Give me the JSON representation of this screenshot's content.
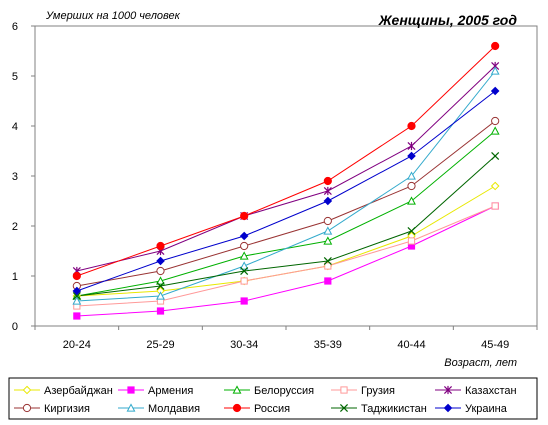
{
  "chart_data": {
    "type": "line",
    "title": "Женщины, 2005 год",
    "ylabel": "Умерших на 1000 человек",
    "xlabel": "Возраст, лет",
    "categories": [
      "20-24",
      "25-29",
      "30-34",
      "35-39",
      "40-44",
      "45-49"
    ],
    "ylim": [
      0,
      6
    ],
    "yticks": [
      "0",
      "1",
      "2",
      "3",
      "4",
      "5",
      "6"
    ],
    "grid": false,
    "legend_position": "bottom",
    "series": [
      {
        "name": "Азербайджан",
        "color": "#e8e800",
        "marker": "diamond-open",
        "values": [
          0.6,
          0.7,
          0.9,
          1.2,
          1.8,
          2.8
        ]
      },
      {
        "name": "Армения",
        "color": "#ff00ff",
        "marker": "square-filled",
        "values": [
          0.2,
          0.3,
          0.5,
          0.9,
          1.6,
          2.4
        ]
      },
      {
        "name": "Белоруссия",
        "color": "#00b000",
        "marker": "triangle-open",
        "values": [
          0.6,
          0.9,
          1.4,
          1.7,
          2.5,
          3.9
        ]
      },
      {
        "name": "Грузия",
        "color": "#ff9999",
        "marker": "square-open",
        "values": [
          0.4,
          0.5,
          0.9,
          1.2,
          1.7,
          2.4
        ]
      },
      {
        "name": "Казахстан",
        "color": "#800080",
        "marker": "star",
        "values": [
          1.1,
          1.5,
          2.2,
          2.7,
          3.6,
          5.2
        ]
      },
      {
        "name": "Киргизия",
        "color": "#993333",
        "marker": "circle-open",
        "values": [
          0.8,
          1.1,
          1.6,
          2.1,
          2.8,
          4.1
        ]
      },
      {
        "name": "Молдавия",
        "color": "#33aacc",
        "marker": "triangle-open",
        "values": [
          0.5,
          0.6,
          1.2,
          1.9,
          3.0,
          5.1
        ]
      },
      {
        "name": "Россия",
        "color": "#ff0000",
        "marker": "circle-filled",
        "values": [
          1.0,
          1.6,
          2.2,
          2.9,
          4.0,
          5.6
        ]
      },
      {
        "name": "Таджикистан",
        "color": "#006600",
        "marker": "x",
        "values": [
          0.6,
          0.8,
          1.1,
          1.3,
          1.9,
          3.4
        ]
      },
      {
        "name": "Украина",
        "color": "#0000cc",
        "marker": "diamond-filled",
        "values": [
          0.7,
          1.3,
          1.8,
          2.5,
          3.4,
          4.7
        ]
      }
    ]
  }
}
